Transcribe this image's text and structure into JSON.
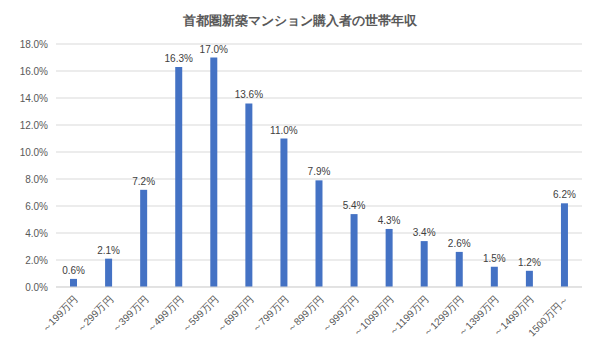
{
  "chart_data": {
    "type": "bar",
    "title": "首都圏新築マンション購入者の世帯年収",
    "categories": [
      "～199万円",
      "～299万円",
      "～399万円",
      "～499万円",
      "～599万円",
      "～699万円",
      "～799万円",
      "～899万円",
      "～999万円",
      "～1099万円",
      "～1199万円",
      "～1299万円",
      "～1399万円",
      "～1499万円",
      "1500万円～"
    ],
    "values": [
      0.6,
      2.1,
      7.2,
      16.3,
      17.0,
      13.6,
      11.0,
      7.9,
      5.4,
      4.3,
      3.4,
      2.6,
      1.5,
      1.2,
      6.2
    ],
    "value_labels": [
      "0.6%",
      "2.1%",
      "7.2%",
      "16.3%",
      "17.0%",
      "13.6%",
      "11.0%",
      "7.9%",
      "5.4%",
      "4.3%",
      "3.4%",
      "2.6%",
      "1.5%",
      "1.2%",
      "6.2%"
    ],
    "color": "#4472c4",
    "ylim": [
      0,
      18
    ],
    "yticks": [
      {
        "value": 0,
        "label": "0.0%"
      },
      {
        "value": 2,
        "label": "2.0%"
      },
      {
        "value": 4,
        "label": "4.0%"
      },
      {
        "value": 6,
        "label": "6.0%"
      },
      {
        "value": 8,
        "label": "8.0%"
      },
      {
        "value": 10,
        "label": "10.0%"
      },
      {
        "value": 12,
        "label": "12.0%"
      },
      {
        "value": 14,
        "label": "14.0%"
      },
      {
        "value": 16,
        "label": "16.0%"
      },
      {
        "value": 18,
        "label": "18.0%"
      }
    ],
    "grid": true,
    "data_labels": true
  }
}
